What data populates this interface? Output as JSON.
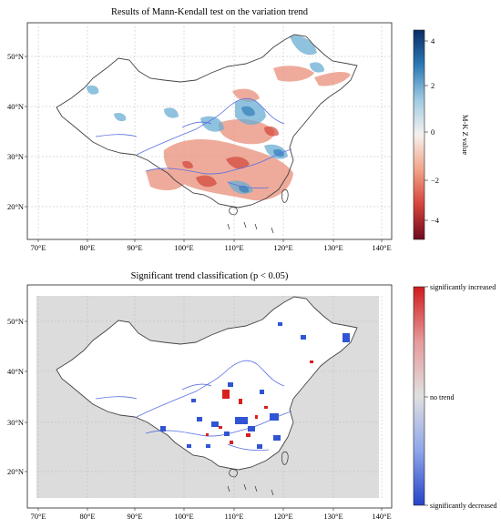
{
  "panels": [
    {
      "id": "mk",
      "title": "Results of Mann-Kendall test on the variation trend",
      "lon_ticks": [
        "70°E",
        "80°E",
        "90°E",
        "100°E",
        "110°E",
        "120°E",
        "130°E",
        "140°E"
      ],
      "lat_ticks": [
        "20°N",
        "30°N",
        "40°N",
        "50°N"
      ],
      "colorbar": {
        "label": "M-K Z value",
        "ticks": [
          "4",
          "2",
          "0",
          "−2",
          "−4"
        ],
        "colors": [
          "#0b2d63",
          "#2b7ab6",
          "#9fcbe2",
          "#f6f1ee",
          "#f2a489",
          "#d6433a",
          "#6d0a1e"
        ]
      }
    },
    {
      "id": "sig",
      "title": "Significant trend classification (p < 0.05)",
      "lon_ticks": [
        "70°E",
        "80°E",
        "90°E",
        "100°E",
        "110°E",
        "120°E",
        "130°E",
        "140°E"
      ],
      "lat_ticks": [
        "20°N",
        "30°N",
        "40°N",
        "50°N"
      ],
      "colorbar": {
        "labels": [
          "significantly increased",
          "no trend",
          "significantly decreased"
        ],
        "colors": [
          "#cf1c1c",
          "#e69a9a",
          "#e0e0e0",
          "#8fa6ea",
          "#2444c8"
        ]
      }
    }
  ],
  "colors": {
    "boundary": "#444444",
    "rivers": "#5a6fe0",
    "gridline": "#b8b8b8",
    "background_gray": "#dcdcdc"
  }
}
